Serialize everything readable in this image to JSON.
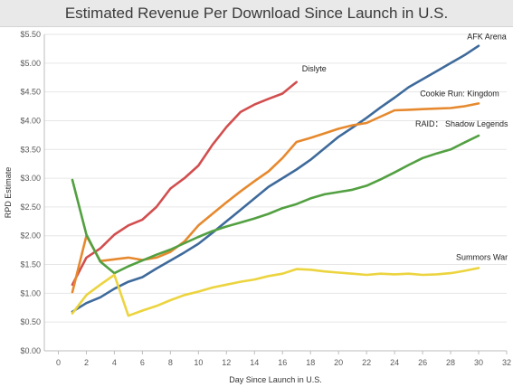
{
  "chart_data": {
    "type": "line",
    "title": "Estimated Revenue Per Download Since Launch in U.S.",
    "xlabel": "Day Since Launch in U.S.",
    "ylabel": "RPD Estimate",
    "xlim": [
      -1,
      32
    ],
    "ylim": [
      0,
      5.5
    ],
    "x_ticks": [
      "0",
      "2",
      "4",
      "6",
      "8",
      "10",
      "12",
      "14",
      "16",
      "18",
      "20",
      "22",
      "24",
      "26",
      "28",
      "30",
      "32"
    ],
    "y_ticks": [
      "$0.00",
      "$0.50",
      "$1.00",
      "$1.50",
      "$2.00",
      "$2.50",
      "$3.00",
      "$3.50",
      "$4.00",
      "$4.50",
      "$5.00",
      "$5.50"
    ],
    "grid": "horizontal",
    "series": [
      {
        "name": "AFK Arena",
        "color": "#3e6a9b",
        "x": [
          1,
          2,
          3,
          4,
          5,
          6,
          7,
          8,
          9,
          10,
          11,
          12,
          13,
          14,
          15,
          16,
          17,
          18,
          19,
          20,
          21,
          22,
          23,
          24,
          25,
          26,
          27,
          28,
          29,
          30
        ],
        "values": [
          0.68,
          0.83,
          0.93,
          1.08,
          1.2,
          1.28,
          1.43,
          1.57,
          1.71,
          1.86,
          2.05,
          2.25,
          2.45,
          2.65,
          2.85,
          3.0,
          3.15,
          3.32,
          3.52,
          3.72,
          3.88,
          4.05,
          4.23,
          4.4,
          4.58,
          4.72,
          4.86,
          5.0,
          5.14,
          5.3
        ]
      },
      {
        "name": "Dislyte",
        "color": "#d24e4e",
        "x": [
          1,
          2,
          3,
          4,
          5,
          6,
          7,
          8,
          9,
          10,
          11,
          12,
          13,
          14,
          15,
          16,
          17
        ],
        "values": [
          1.15,
          1.62,
          1.78,
          2.02,
          2.18,
          2.28,
          2.5,
          2.82,
          3.0,
          3.22,
          3.58,
          3.89,
          4.15,
          4.28,
          4.38,
          4.47,
          4.67
        ]
      },
      {
        "name": "Cookie Run: Kingdom",
        "color": "#e6892e",
        "x": [
          1,
          2,
          3,
          4,
          5,
          6,
          7,
          8,
          9,
          10,
          11,
          12,
          13,
          14,
          15,
          16,
          17,
          18,
          19,
          20,
          21,
          22,
          23,
          24,
          25,
          26,
          27,
          28,
          29,
          30
        ],
        "values": [
          1.02,
          2.0,
          1.56,
          1.59,
          1.62,
          1.58,
          1.62,
          1.72,
          1.9,
          2.18,
          2.38,
          2.58,
          2.77,
          2.95,
          3.12,
          3.35,
          3.63,
          3.7,
          3.78,
          3.86,
          3.92,
          3.96,
          4.07,
          4.18,
          4.19,
          4.2,
          4.21,
          4.22,
          4.25,
          4.3
        ]
      },
      {
        "name": "RAID： Shadow Legends",
        "color": "#52a041",
        "x": [
          1,
          2,
          3,
          4,
          5,
          6,
          7,
          8,
          9,
          10,
          11,
          12,
          13,
          14,
          15,
          16,
          17,
          18,
          19,
          20,
          21,
          22,
          23,
          24,
          25,
          26,
          27,
          28,
          29,
          30
        ],
        "values": [
          2.97,
          2.02,
          1.55,
          1.35,
          1.47,
          1.57,
          1.67,
          1.76,
          1.87,
          1.98,
          2.08,
          2.16,
          2.23,
          2.3,
          2.38,
          2.48,
          2.55,
          2.65,
          2.72,
          2.76,
          2.8,
          2.87,
          2.98,
          3.1,
          3.23,
          3.35,
          3.43,
          3.5,
          3.62,
          3.74
        ]
      },
      {
        "name": "Summors War",
        "color": "#ecd43f",
        "x": [
          1,
          2,
          3,
          4,
          5,
          6,
          7,
          8,
          9,
          10,
          11,
          12,
          13,
          14,
          15,
          16,
          17,
          18,
          19,
          20,
          21,
          22,
          23,
          24,
          25,
          26,
          27,
          28,
          29,
          30
        ],
        "values": [
          0.65,
          0.97,
          1.15,
          1.32,
          0.61,
          0.7,
          0.78,
          0.88,
          0.97,
          1.03,
          1.1,
          1.15,
          1.2,
          1.24,
          1.3,
          1.34,
          1.42,
          1.41,
          1.38,
          1.36,
          1.34,
          1.32,
          1.34,
          1.33,
          1.34,
          1.32,
          1.33,
          1.35,
          1.39,
          1.44
        ]
      }
    ]
  }
}
